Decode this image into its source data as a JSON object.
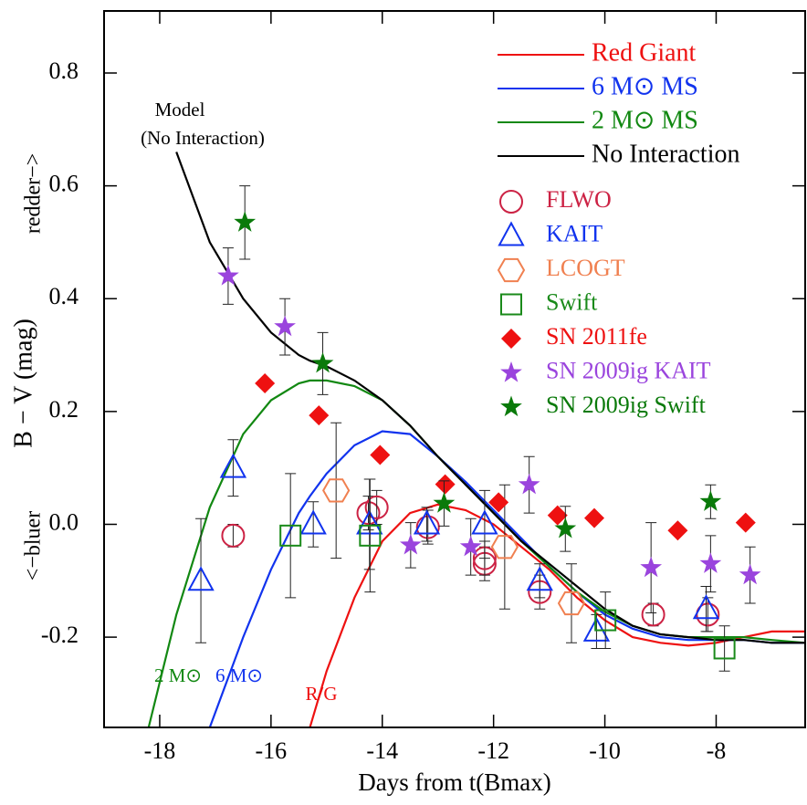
{
  "chart_data": {
    "type": "line",
    "xlabel": "Days from t(Bmax)",
    "ylabel": "B − V (mag)",
    "xlim": [
      -19,
      -6.4
    ],
    "ylim": [
      -0.36,
      0.91
    ],
    "xticks": [
      -18,
      -16,
      -14,
      -12,
      -10,
      -8
    ],
    "yticks": [
      -0.2,
      {
        "value": 0,
        "label": "0.0"
      },
      0.2,
      0.4,
      0.6,
      0.8
    ],
    "x": [
      -18.2,
      -17.7,
      -17.1,
      -16.5,
      -16,
      -15.5,
      -15.3,
      -15,
      -14.5,
      -14,
      -13.5,
      -13,
      -12.5,
      -12,
      -11.5,
      -11,
      -10.5,
      -10,
      -9.5,
      -9,
      -8.5,
      -8,
      -7.5,
      -7,
      -6.4
    ],
    "series": [
      {
        "name": "Red Giant",
        "color": "#ee1111",
        "values": [
          null,
          null,
          null,
          null,
          null,
          null,
          -0.36,
          -0.26,
          -0.13,
          -0.03,
          0.02,
          0.035,
          0.025,
          0.0,
          -0.04,
          -0.08,
          -0.13,
          -0.17,
          -0.2,
          -0.21,
          -0.215,
          -0.21,
          -0.2,
          -0.19,
          -0.19
        ]
      },
      {
        "name": "6 M⊙ MS",
        "color": "#1133ee",
        "values": [
          null,
          null,
          -0.36,
          -0.2,
          -0.08,
          0.02,
          0.05,
          0.09,
          0.14,
          0.165,
          0.16,
          0.12,
          0.075,
          0.025,
          -0.025,
          -0.075,
          -0.12,
          -0.16,
          -0.185,
          -0.2,
          -0.205,
          -0.205,
          -0.205,
          -0.21,
          -0.21
        ]
      },
      {
        "name": "2 M⊙ MS",
        "color": "#128812",
        "values": [
          -0.36,
          -0.16,
          0.03,
          0.16,
          0.22,
          0.25,
          0.255,
          0.255,
          0.245,
          0.22,
          0.175,
          0.12,
          0.07,
          0.02,
          -0.03,
          -0.075,
          -0.12,
          -0.155,
          -0.18,
          -0.195,
          -0.2,
          -0.2,
          -0.2,
          -0.205,
          -0.21
        ]
      },
      {
        "name": "No Interaction",
        "color": "#000000",
        "values": [
          null,
          0.66,
          0.5,
          0.4,
          0.34,
          0.3,
          0.29,
          0.28,
          0.255,
          0.22,
          0.175,
          0.12,
          0.07,
          0.02,
          -0.03,
          -0.07,
          -0.11,
          -0.15,
          -0.18,
          -0.195,
          -0.2,
          -0.205,
          -0.205,
          -0.21,
          -0.21
        ]
      }
    ],
    "scatter_series": [
      {
        "name": "FLWO",
        "color": "#cc2244",
        "marker": "circle",
        "x": [
          -16.68,
          -14.25,
          -14.1,
          -13.18,
          -12.16,
          -12.16,
          -11.17,
          -9.13,
          -8.15
        ],
        "values": [
          -0.02,
          0.02,
          0.03,
          -0.005,
          -0.07,
          -0.06,
          -0.12,
          -0.16,
          -0.16
        ],
        "errors": [
          0.02,
          0.03,
          0.03,
          0.03,
          0.03,
          0.03,
          0.03,
          0.02,
          0.03
        ]
      },
      {
        "name": "KAIT",
        "color": "#1133ee",
        "marker": "triangle",
        "x": [
          -17.26,
          -16.68,
          -15.24,
          -14.23,
          -13.2,
          -12.16,
          -11.17,
          -10.15,
          -8.18
        ],
        "values": [
          -0.1,
          0.1,
          0.0,
          0.0,
          0.0,
          0.0,
          -0.1,
          -0.19,
          -0.15
        ],
        "errors": [
          0.11,
          0.05,
          0.04,
          0.08,
          0.03,
          0.06,
          0.03,
          0.03,
          0.04
        ]
      },
      {
        "name": "LCOGT",
        "color": "#f08050",
        "marker": "hexagon",
        "x": [
          -14.83,
          -11.8,
          -10.6
        ],
        "values": [
          0.06,
          -0.04,
          -0.14
        ],
        "errors": [
          0.12,
          0.11,
          0.07
        ]
      },
      {
        "name": "Swift",
        "color": "#1a8a1a",
        "marker": "square",
        "x": [
          -15.65,
          -14.22,
          -9.99,
          -7.85
        ],
        "values": [
          -0.02,
          -0.02,
          -0.17,
          -0.22
        ],
        "errors": [
          0.11,
          0.1,
          0.05,
          0.04
        ]
      },
      {
        "name": "SN 2011fe",
        "color": "#ee1111",
        "marker": "diamond",
        "x": [
          -16.11,
          -15.14,
          -14.04,
          -12.87,
          -11.91,
          -10.85,
          -10.19,
          -8.69,
          -7.47
        ],
        "values": [
          0.25,
          0.193,
          0.123,
          0.071,
          0.039,
          0.016,
          0.011,
          -0.011,
          0.003
        ]
      },
      {
        "name": "SN 2009ig KAIT",
        "color": "#9a44dd",
        "marker": "star",
        "x": [
          -16.77,
          -15.75,
          -13.49,
          -12.41,
          -11.36,
          -9.17,
          -8.1,
          -7.39
        ],
        "values": [
          0.44,
          0.35,
          -0.037,
          -0.04,
          0.07,
          -0.077,
          -0.07,
          -0.09
        ],
        "errors": [
          0.05,
          0.05,
          0.04,
          0.05,
          0.05,
          0.08,
          0.05,
          0.05
        ]
      },
      {
        "name": "SN 2009ig Swift",
        "color": "#0a7a0a",
        "marker": "star",
        "x": [
          -16.47,
          -15.07,
          -12.89,
          -10.71,
          -8.1
        ],
        "values": [
          0.535,
          0.285,
          0.037,
          -0.008,
          0.04
        ],
        "errors": [
          0.065,
          0.055,
          0.04,
          0.04,
          0.03
        ]
      }
    ],
    "annotations": [
      {
        "text": "Model",
        "color": "#000000"
      },
      {
        "text": "(No Interaction)",
        "color": "#000000"
      },
      {
        "text": "redder−>",
        "color": "#000000"
      },
      {
        "text": "<−bluer",
        "color": "#000000"
      },
      {
        "text": "2 M⊙",
        "color": "#128812"
      },
      {
        "text": "6 M⊙",
        "color": "#1133ee"
      },
      {
        "text": "R/G",
        "color": "#ee1111"
      }
    ]
  }
}
